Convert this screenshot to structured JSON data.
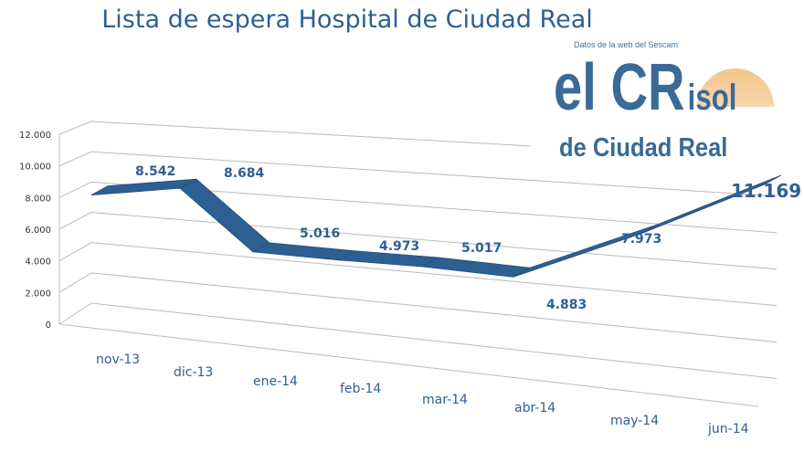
{
  "chart_data": {
    "type": "line",
    "title": "Lista de espera Hospital de Ciudad Real",
    "subtitle": "Datos de la web del Sescam",
    "categories": [
      "nov-13",
      "dic-13",
      "ene-14",
      "feb-14",
      "mar-14",
      "abr-14",
      "may-14",
      "jun-14"
    ],
    "values": [
      8542,
      8684,
      5016,
      4973,
      5017,
      4883,
      7973,
      11169
    ],
    "data_labels": [
      "8.542",
      "8.684",
      "5.016",
      "4.973",
      "5.017",
      "4.883",
      "7.973",
      "11.169"
    ],
    "y_ticks": [
      "0",
      "2.000",
      "4.000",
      "6.000",
      "8.000",
      "10.000",
      "12.000"
    ],
    "ylim": [
      0,
      12000
    ],
    "grid": true,
    "style": "3d-ribbon",
    "color": "#2e5f93"
  },
  "logo": {
    "line1_big": "el CR",
    "line1_small": "isol",
    "line2": "de Ciudad Real",
    "sun_color": "#f3c58a"
  }
}
